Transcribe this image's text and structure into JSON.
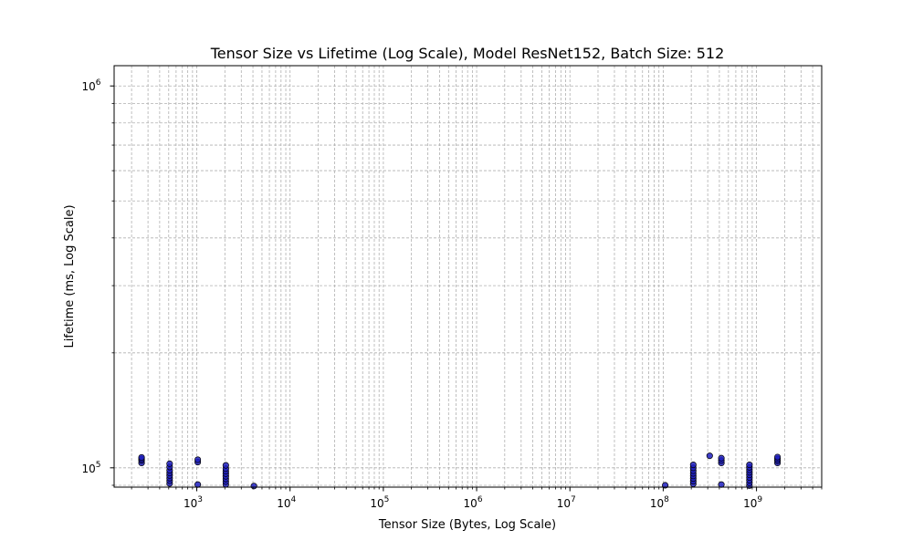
{
  "chart_data": {
    "type": "scatter",
    "title": "Tensor Size vs Lifetime (Log Scale), Model ResNet152, Batch Size: 512",
    "xlabel": "Tensor Size (Bytes, Log Scale)",
    "ylabel": "Lifetime (ms, Log Scale)",
    "xscale": "log",
    "yscale": "log",
    "xlim": [
      130,
      5000000000
    ],
    "ylim": [
      89000,
      1130000
    ],
    "grid": true,
    "legend": "none",
    "colors": {
      "marker_fill": "#1f1fbf",
      "marker_edge": "#000000",
      "grid": "#b0b0b0"
    },
    "x_ticks": [
      {
        "value": 1000,
        "base": "10",
        "exp": "3"
      },
      {
        "value": 10000,
        "base": "10",
        "exp": "4"
      },
      {
        "value": 100000,
        "base": "10",
        "exp": "5"
      },
      {
        "value": 1000000,
        "base": "10",
        "exp": "6"
      },
      {
        "value": 10000000,
        "base": "10",
        "exp": "7"
      },
      {
        "value": 100000000,
        "base": "10",
        "exp": "8"
      },
      {
        "value": 1000000000,
        "base": "10",
        "exp": "9"
      }
    ],
    "y_ticks": [
      {
        "value": 100000,
        "base": "10",
        "exp": "5"
      },
      {
        "value": 1000000,
        "base": "10",
        "exp": "6"
      }
    ],
    "points": [
      {
        "x": 256,
        "y": 103000
      },
      {
        "x": 256,
        "y": 104500
      },
      {
        "x": 256,
        "y": 105500
      },
      {
        "x": 256,
        "y": 106500
      },
      {
        "x": 512,
        "y": 91000
      },
      {
        "x": 512,
        "y": 92500
      },
      {
        "x": 512,
        "y": 94000
      },
      {
        "x": 512,
        "y": 95500
      },
      {
        "x": 512,
        "y": 97000
      },
      {
        "x": 512,
        "y": 98500
      },
      {
        "x": 512,
        "y": 100500
      },
      {
        "x": 512,
        "y": 102500
      },
      {
        "x": 1024,
        "y": 90400
      },
      {
        "x": 1024,
        "y": 103500
      },
      {
        "x": 1024,
        "y": 105000
      },
      {
        "x": 2048,
        "y": 90500
      },
      {
        "x": 2048,
        "y": 92000
      },
      {
        "x": 2048,
        "y": 93500
      },
      {
        "x": 2048,
        "y": 95000
      },
      {
        "x": 2048,
        "y": 96500
      },
      {
        "x": 2048,
        "y": 98000
      },
      {
        "x": 2048,
        "y": 99500
      },
      {
        "x": 2048,
        "y": 101500
      },
      {
        "x": 4096,
        "y": 89600
      },
      {
        "x": 105000000,
        "y": 90000
      },
      {
        "x": 210000000,
        "y": 90800
      },
      {
        "x": 210000000,
        "y": 92200
      },
      {
        "x": 210000000,
        "y": 93700
      },
      {
        "x": 210000000,
        "y": 95200
      },
      {
        "x": 210000000,
        "y": 96700
      },
      {
        "x": 210000000,
        "y": 98300
      },
      {
        "x": 210000000,
        "y": 100000
      },
      {
        "x": 210000000,
        "y": 101800
      },
      {
        "x": 315000000,
        "y": 107500
      },
      {
        "x": 420000000,
        "y": 90400
      },
      {
        "x": 420000000,
        "y": 103000
      },
      {
        "x": 420000000,
        "y": 104500
      },
      {
        "x": 420000000,
        "y": 106000
      },
      {
        "x": 840000000,
        "y": 89800
      },
      {
        "x": 840000000,
        "y": 91300
      },
      {
        "x": 840000000,
        "y": 92800
      },
      {
        "x": 840000000,
        "y": 94300
      },
      {
        "x": 840000000,
        "y": 95800
      },
      {
        "x": 840000000,
        "y": 97300
      },
      {
        "x": 840000000,
        "y": 98800
      },
      {
        "x": 840000000,
        "y": 100300
      },
      {
        "x": 840000000,
        "y": 101800
      },
      {
        "x": 1680000000,
        "y": 103000
      },
      {
        "x": 1680000000,
        "y": 104300
      },
      {
        "x": 1680000000,
        "y": 105500
      },
      {
        "x": 1680000000,
        "y": 106700
      }
    ]
  }
}
